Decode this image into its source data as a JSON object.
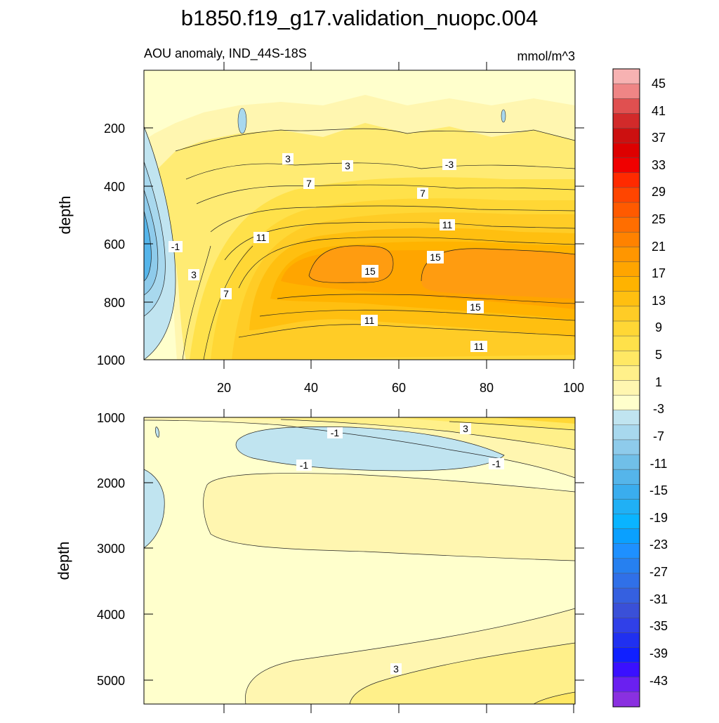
{
  "chart_data": {
    "type": "heatmap",
    "title": "b1850.f19_g17.validation_nuopc.004",
    "subtitle_left": "AOU anomaly, IND_44S-18S",
    "subtitle_right": "mmol/m^3",
    "colorbar_labels": [
      "45",
      "41",
      "37",
      "33",
      "29",
      "25",
      "21",
      "17",
      "13",
      "9",
      "5",
      "1",
      "-3",
      "-7",
      "-11",
      "-15",
      "-19",
      "-23",
      "-27",
      "-31",
      "-35",
      "-39",
      "-43"
    ],
    "colorbar_colors": [
      "#f7b2b2",
      "#ef8585",
      "#e05050",
      "#d22a2a",
      "#cc1010",
      "#dd0000",
      "#f00000",
      "#ff2a00",
      "#ff4500",
      "#ff5a00",
      "#ff6e00",
      "#ff8200",
      "#ff9600",
      "#ffa500",
      "#ffb300",
      "#ffbf10",
      "#ffcc26",
      "#ffd735",
      "#ffe14a",
      "#ffe864",
      "#fff08a",
      "#fff6b0",
      "#ffffcc",
      "#c0e4f0",
      "#a8d8ee",
      "#8ecbeb",
      "#70bfe8",
      "#55b5ea",
      "#3aadee",
      "#20b0f5",
      "#0ab4ff",
      "#0aa0ff",
      "#1e90ff",
      "#2680f0",
      "#3070e8",
      "#3560e0",
      "#3a50d8",
      "#3040e8",
      "#2030f0",
      "#1020ff",
      "#3a10ff",
      "#6a20f0",
      "#8a30e0"
    ],
    "top_panel": {
      "xlabel": "",
      "ylabel": "depth",
      "x_ticks": [
        "20",
        "40",
        "60",
        "80",
        "100"
      ],
      "y_ticks": [
        "200",
        "400",
        "600",
        "800",
        "1000"
      ],
      "xlim": [
        1,
        101
      ],
      "ylim": [
        1000,
        30
      ],
      "contour_labels": [
        "3",
        "3",
        "-3",
        "7",
        "7",
        "11",
        "11",
        "-1",
        "3",
        "7",
        "15",
        "15",
        "15",
        "11",
        "11"
      ]
    },
    "bottom_panel": {
      "ylabel": "depth",
      "y_ticks": [
        "1000",
        "2000",
        "3000",
        "4000",
        "5000"
      ],
      "ylim": [
        5375,
        1000
      ],
      "contour_labels": [
        "-1",
        "3",
        "-1",
        "-1",
        "3"
      ]
    }
  }
}
